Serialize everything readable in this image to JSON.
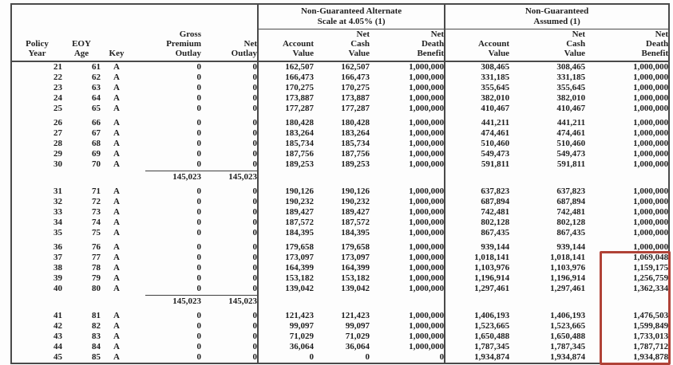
{
  "document": {
    "background": "#fdfdfd",
    "text_color": "#1f1f1f",
    "border_color": "#4a4a4a"
  },
  "table": {
    "left_columns": [
      {
        "id": "policy-year",
        "label": "Policy\nYear"
      },
      {
        "id": "eoy-age",
        "label": "EOY\nAge"
      },
      {
        "id": "key",
        "label": "Key"
      },
      {
        "id": "gross-premium-outlay",
        "label": "Gross\nPremium\nOutlay"
      },
      {
        "id": "net-outlay",
        "label": "Net\nOutlay"
      }
    ],
    "groups": [
      {
        "id": "alternate",
        "title": "Non-Guaranteed Alternate\nScale at 4.05% (1)",
        "columns": [
          {
            "id": "account-value",
            "label": "Account\nValue"
          },
          {
            "id": "net-cash-value",
            "label": "Net\nCash\nValue"
          },
          {
            "id": "net-death-benefit",
            "label": "Net\nDeath\nBenefit"
          }
        ]
      },
      {
        "id": "assumed",
        "title": "Non-Guaranteed\nAssumed (1)",
        "columns": [
          {
            "id": "account-value",
            "label": "Account\nValue"
          },
          {
            "id": "net-cash-value",
            "label": "Net\nCash\nValue"
          },
          {
            "id": "net-death-benefit",
            "label": "Net\nDeath\nBenefit"
          }
        ]
      }
    ],
    "blocks": [
      {
        "rows": [
          [
            "21",
            "61",
            "A",
            "0",
            "0",
            "162,507",
            "162,507",
            "1,000,000",
            "308,465",
            "308,465",
            "1,000,000"
          ],
          [
            "22",
            "62",
            "A",
            "0",
            "0",
            "166,473",
            "166,473",
            "1,000,000",
            "331,185",
            "331,185",
            "1,000,000"
          ],
          [
            "23",
            "63",
            "A",
            "0",
            "0",
            "170,275",
            "170,275",
            "1,000,000",
            "355,645",
            "355,645",
            "1,000,000"
          ],
          [
            "24",
            "64",
            "A",
            "0",
            "0",
            "173,887",
            "173,887",
            "1,000,000",
            "382,010",
            "382,010",
            "1,000,000"
          ],
          [
            "25",
            "65",
            "A",
            "0",
            "0",
            "177,287",
            "177,287",
            "1,000,000",
            "410,467",
            "410,467",
            "1,000,000"
          ]
        ]
      },
      {
        "rows": [
          [
            "26",
            "66",
            "A",
            "0",
            "0",
            "180,428",
            "180,428",
            "1,000,000",
            "441,211",
            "441,211",
            "1,000,000"
          ],
          [
            "27",
            "67",
            "A",
            "0",
            "0",
            "183,264",
            "183,264",
            "1,000,000",
            "474,461",
            "474,461",
            "1,000,000"
          ],
          [
            "28",
            "68",
            "A",
            "0",
            "0",
            "185,734",
            "185,734",
            "1,000,000",
            "510,460",
            "510,460",
            "1,000,000"
          ],
          [
            "29",
            "69",
            "A",
            "0",
            "0",
            "187,756",
            "187,756",
            "1,000,000",
            "549,473",
            "549,473",
            "1,000,000"
          ],
          [
            "30",
            "70",
            "A",
            "0",
            "0",
            "189,253",
            "189,253",
            "1,000,000",
            "591,811",
            "591,811",
            "1,000,000"
          ]
        ],
        "subtotal": {
          "gross_premium_outlay": "145,023",
          "net_outlay": "145,023"
        }
      },
      {
        "rows": [
          [
            "31",
            "71",
            "A",
            "0",
            "0",
            "190,126",
            "190,126",
            "1,000,000",
            "637,823",
            "637,823",
            "1,000,000"
          ],
          [
            "32",
            "72",
            "A",
            "0",
            "0",
            "190,232",
            "190,232",
            "1,000,000",
            "687,894",
            "687,894",
            "1,000,000"
          ],
          [
            "33",
            "73",
            "A",
            "0",
            "0",
            "189,427",
            "189,427",
            "1,000,000",
            "742,481",
            "742,481",
            "1,000,000"
          ],
          [
            "34",
            "74",
            "A",
            "0",
            "0",
            "187,572",
            "187,572",
            "1,000,000",
            "802,128",
            "802,128",
            "1,000,000"
          ],
          [
            "35",
            "75",
            "A",
            "0",
            "0",
            "184,395",
            "184,395",
            "1,000,000",
            "867,435",
            "867,435",
            "1,000,000"
          ]
        ]
      },
      {
        "rows": [
          [
            "36",
            "76",
            "A",
            "0",
            "0",
            "179,658",
            "179,658",
            "1,000,000",
            "939,144",
            "939,144",
            "1,000,000"
          ],
          [
            "37",
            "77",
            "A",
            "0",
            "0",
            "173,097",
            "173,097",
            "1,000,000",
            "1,018,141",
            "1,018,141",
            "1,069,048"
          ],
          [
            "38",
            "78",
            "A",
            "0",
            "0",
            "164,399",
            "164,399",
            "1,000,000",
            "1,103,976",
            "1,103,976",
            "1,159,175"
          ],
          [
            "39",
            "79",
            "A",
            "0",
            "0",
            "153,182",
            "153,182",
            "1,000,000",
            "1,196,914",
            "1,196,914",
            "1,256,759"
          ],
          [
            "40",
            "80",
            "A",
            "0",
            "0",
            "139,042",
            "139,042",
            "1,000,000",
            "1,297,461",
            "1,297,461",
            "1,362,334"
          ]
        ],
        "subtotal": {
          "gross_premium_outlay": "145,023",
          "net_outlay": "145,023"
        }
      },
      {
        "rows": [
          [
            "41",
            "81",
            "A",
            "0",
            "0",
            "121,423",
            "121,423",
            "1,000,000",
            "1,406,193",
            "1,406,193",
            "1,476,503"
          ],
          [
            "42",
            "82",
            "A",
            "0",
            "0",
            "99,097",
            "99,097",
            "1,000,000",
            "1,523,665",
            "1,523,665",
            "1,599,849"
          ],
          [
            "43",
            "83",
            "A",
            "0",
            "0",
            "71,029",
            "71,029",
            "1,000,000",
            "1,650,488",
            "1,650,488",
            "1,733,013"
          ],
          [
            "44",
            "84",
            "A",
            "0",
            "0",
            "36,064",
            "36,064",
            "1,000,000",
            "1,787,345",
            "1,787,345",
            "1,787,712"
          ],
          [
            "45",
            "85",
            "A",
            "0",
            "0",
            "0",
            "0",
            "0",
            "1,934,874",
            "1,934,874",
            "1,934,878"
          ]
        ]
      }
    ]
  },
  "highlight": {
    "color": "#b04237",
    "column": "assumed-net-death-benefit",
    "start_policy_year": "37",
    "end_policy_year": "45"
  }
}
